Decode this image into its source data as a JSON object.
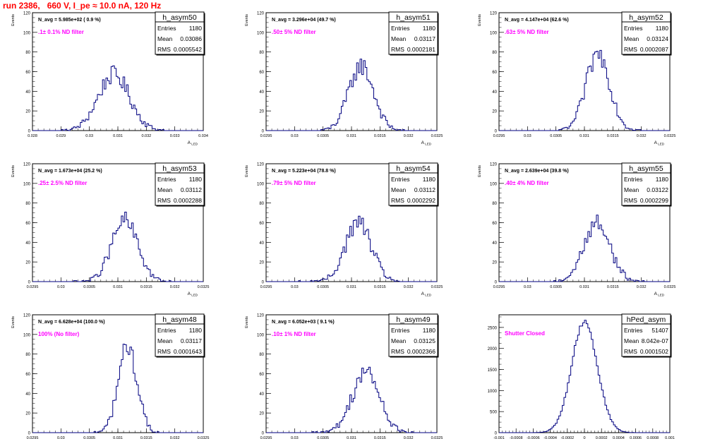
{
  "page": {
    "title": "run 2386,   660 V, I_pe ≈ 10.0 nA, 120 Hz"
  },
  "chart_data": [
    {
      "type": "bar",
      "name": "h_asym50",
      "navg": "N_avg = 5.985e+02 ( 0.9 %)",
      "filter": ".1± 0.1% ND filter",
      "stats": {
        "Entries": "1180",
        "Mean": "0.03086",
        "RMS": "0.0005542"
      },
      "xlabel": "A",
      "xsub": "LED",
      "ylabel": "Events",
      "xlim": [
        0.028,
        0.034
      ],
      "ylim": [
        0,
        120
      ],
      "xticks": [
        "0.028",
        "0.029",
        "0.03",
        "0.031",
        "0.032",
        "0.033",
        "0.034"
      ],
      "yticks": [
        "0",
        "20",
        "40",
        "60",
        "80",
        "100",
        "120"
      ],
      "mean": 0.03086,
      "sigma": 0.00055,
      "peak": 57
    },
    {
      "type": "bar",
      "name": "h_asym51",
      "navg": "N_avg = 3.296e+04 (49.7 %)",
      "filter": ".50± 5% ND filter",
      "stats": {
        "Entries": "1180",
        "Mean": "0.03117",
        "RMS": "0.0002181"
      },
      "xlabel": "A",
      "xsub": "LED",
      "ylabel": "Events",
      "xlim": [
        0.0295,
        0.0325
      ],
      "ylim": [
        0,
        120
      ],
      "xticks": [
        "0.0295",
        "0.03",
        "0.0305",
        "0.031",
        "0.0315",
        "0.032",
        "0.0325"
      ],
      "yticks": [
        "0",
        "20",
        "40",
        "60",
        "80",
        "100",
        "120"
      ],
      "mean": 0.03117,
      "sigma": 0.000218,
      "peak": 66
    },
    {
      "type": "bar",
      "name": "h_asym52",
      "navg": "N_avg = 4.147e+04 (62.6 %)",
      "filter": ".63± 5% ND filter",
      "stats": {
        "Entries": "1180",
        "Mean": "0.03124",
        "RMS": "0.0002087"
      },
      "xlabel": "A",
      "xsub": "LED",
      "ylabel": "Events",
      "xlim": [
        0.0295,
        0.0325
      ],
      "ylim": [
        0,
        120
      ],
      "xticks": [
        "0.0295",
        "0.03",
        "0.0305",
        "0.031",
        "0.0315",
        "0.032",
        "0.0325"
      ],
      "yticks": [
        "0",
        "20",
        "40",
        "60",
        "80",
        "100",
        "120"
      ],
      "mean": 0.03124,
      "sigma": 0.000209,
      "peak": 78
    },
    {
      "type": "bar",
      "name": "h_asym53",
      "navg": "N_avg = 1.673e+04 (25.2 %)",
      "filter": ".25± 2.5% ND filter",
      "stats": {
        "Entries": "1180",
        "Mean": "0.03112",
        "RMS": "0.0002288"
      },
      "xlabel": "A",
      "xsub": "LED",
      "ylabel": "Events",
      "xlim": [
        0.0295,
        0.0325
      ],
      "ylim": [
        0,
        120
      ],
      "xticks": [
        "0.0295",
        "0.03",
        "0.0305",
        "0.031",
        "0.0315",
        "0.032",
        "0.0325"
      ],
      "yticks": [
        "0",
        "20",
        "40",
        "60",
        "80",
        "100",
        "120"
      ],
      "mean": 0.03112,
      "sigma": 0.000229,
      "peak": 62
    },
    {
      "type": "bar",
      "name": "h_asym54",
      "navg": "N_avg = 5.223e+04 (78.8 %)",
      "filter": ".79± 5% ND filter",
      "stats": {
        "Entries": "1180",
        "Mean": "0.03112",
        "RMS": "0.0002292"
      },
      "xlabel": "A",
      "xsub": "LED",
      "ylabel": "Events",
      "xlim": [
        0.0295,
        0.0325
      ],
      "ylim": [
        0,
        120
      ],
      "xticks": [
        "0.0295",
        "0.03",
        "0.0305",
        "0.031",
        "0.0315",
        "0.032",
        "0.0325"
      ],
      "yticks": [
        "0",
        "20",
        "40",
        "60",
        "80",
        "100",
        "120"
      ],
      "mean": 0.03112,
      "sigma": 0.000229,
      "peak": 60
    },
    {
      "type": "bar",
      "name": "h_asym55",
      "navg": "N_avg = 2.639e+04 (39.8 %)",
      "filter": ".40± 4% ND filter",
      "stats": {
        "Entries": "1180",
        "Mean": "0.03122",
        "RMS": "0.0002299"
      },
      "xlabel": "A",
      "xsub": "LED",
      "ylabel": "Events",
      "xlim": [
        0.0295,
        0.0325
      ],
      "ylim": [
        0,
        120
      ],
      "xticks": [
        "0.0295",
        "0.03",
        "0.0305",
        "0.031",
        "0.0315",
        "0.032",
        "0.0325"
      ],
      "yticks": [
        "0",
        "20",
        "40",
        "60",
        "80",
        "100",
        "120"
      ],
      "mean": 0.03122,
      "sigma": 0.00023,
      "peak": 60
    },
    {
      "type": "bar",
      "name": "h_asym48",
      "navg": "N_avg = 6.628e+04 (100.0 %)",
      "filter": "100% (No filter)",
      "stats": {
        "Entries": "1180",
        "Mean": "0.03117",
        "RMS": "0.0001643"
      },
      "xlabel": "A",
      "xsub": "LED",
      "ylabel": "Events",
      "xlim": [
        0.0295,
        0.0325
      ],
      "ylim": [
        0,
        120
      ],
      "xticks": [
        "0.0295",
        "0.03",
        "0.0305",
        "0.031",
        "0.0315",
        "0.032",
        "0.0325"
      ],
      "yticks": [
        "0",
        "20",
        "40",
        "60",
        "80",
        "100",
        "120"
      ],
      "mean": 0.03117,
      "sigma": 0.000164,
      "peak": 88
    },
    {
      "type": "bar",
      "name": "h_asym49",
      "navg": "N_avg = 6.052e+03 ( 9.1 %)",
      "filter": ".10± 1% ND filter",
      "stats": {
        "Entries": "1180",
        "Mean": "0.03125",
        "RMS": "0.0002366"
      },
      "xlabel": "A",
      "xsub": "LED",
      "ylabel": "Events",
      "xlim": [
        0.0295,
        0.0325
      ],
      "ylim": [
        0,
        120
      ],
      "xticks": [
        "0.0295",
        "0.03",
        "0.0305",
        "0.031",
        "0.0315",
        "0.032",
        "0.0325"
      ],
      "yticks": [
        "0",
        "20",
        "40",
        "60",
        "80",
        "100",
        "120"
      ],
      "mean": 0.03125,
      "sigma": 0.000237,
      "peak": 62
    },
    {
      "type": "bar",
      "name": "hPed_asym",
      "navg": "",
      "filter": "Shutter Closed",
      "stats": {
        "Entries": "51407",
        "Mean": "8.042e-07",
        "RMS": "0.0001502"
      },
      "xlabel": "",
      "xsub": "",
      "ylabel": "",
      "xlim": [
        -0.001,
        0.001
      ],
      "ylim": [
        0,
        2800
      ],
      "xticks": [
        "-0.001",
        "-0.0008",
        "-0.0006",
        "-0.0004",
        "-0.0002",
        "0",
        "0.0002",
        "0.0004",
        "0.0006",
        "0.0008",
        "0.001"
      ],
      "yticks": [
        "0",
        "500",
        "1000",
        "1500",
        "2000",
        "2500"
      ],
      "mean": 8e-07,
      "sigma": 0.00015,
      "peak": 2650
    }
  ]
}
